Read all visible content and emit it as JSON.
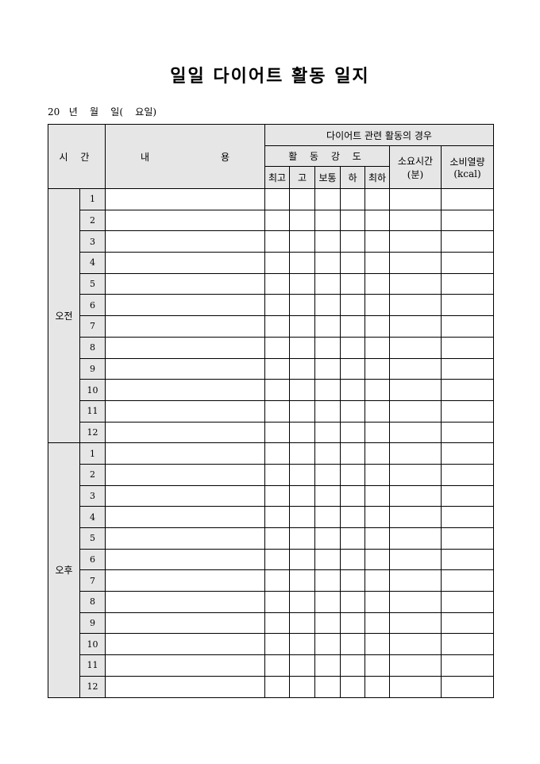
{
  "title": "일일 다이어트 활동 일지",
  "date_line": "20   년    월    일(    요일)",
  "header": {
    "time": "시  간",
    "content_a": "내",
    "content_b": "용",
    "diet_group": "다이어트 관련 활동의 경우",
    "intensity": "활 동 강 도",
    "levels": [
      "최고",
      "고",
      "보통",
      "하",
      "최하"
    ],
    "duration": "소요시간",
    "duration_unit": "(분)",
    "calories": "소비열량",
    "calories_unit": "(kcal)"
  },
  "periods": [
    {
      "label": "오전",
      "hours": [
        "1",
        "2",
        "3",
        "4",
        "5",
        "6",
        "7",
        "8",
        "9",
        "10",
        "11",
        "12"
      ]
    },
    {
      "label": "오후",
      "hours": [
        "1",
        "2",
        "3",
        "4",
        "5",
        "6",
        "7",
        "8",
        "9",
        "10",
        "11",
        "12"
      ]
    }
  ]
}
